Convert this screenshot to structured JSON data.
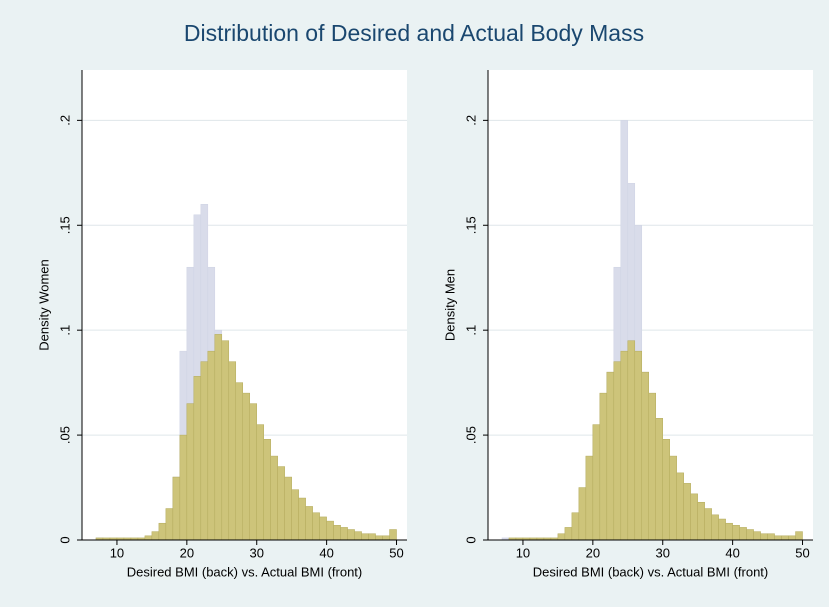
{
  "title": "Distribution of Desired and Actual Body Mass",
  "chart_data": [
    {
      "type": "histogram",
      "ylabel": "Density Women",
      "xlabel": "Desired BMI (back) vs. Actual BMI (front)",
      "bins": [
        7,
        8,
        9,
        10,
        11,
        12,
        13,
        14,
        15,
        16,
        17,
        18,
        19,
        20,
        21,
        22,
        23,
        24,
        25,
        26,
        27,
        28,
        29,
        30,
        31,
        32,
        33,
        34,
        35,
        36,
        37,
        38,
        39,
        40,
        41,
        42,
        43,
        44,
        45,
        46,
        47,
        48,
        49,
        50
      ],
      "series": [
        {
          "name": "Desired BMI",
          "color": "#d9dcea",
          "values": [
            0.001,
            0,
            0,
            0,
            0,
            0,
            0,
            0.001,
            0.001,
            0.003,
            0.008,
            0.03,
            0.09,
            0.13,
            0.155,
            0.16,
            0.13,
            0.1,
            0.07,
            0.05,
            0.03,
            0.02,
            0.012,
            0.008,
            0.005,
            0.003,
            0.002,
            0.001,
            0,
            0,
            0,
            0,
            0,
            0,
            0,
            0,
            0,
            0,
            0,
            0,
            0,
            0,
            0
          ]
        },
        {
          "name": "Actual BMI",
          "color": "#cdc47a",
          "values": [
            0.001,
            0.001,
            0.001,
            0.001,
            0.001,
            0.001,
            0.001,
            0.002,
            0.004,
            0.008,
            0.015,
            0.03,
            0.05,
            0.065,
            0.078,
            0.085,
            0.09,
            0.098,
            0.095,
            0.085,
            0.075,
            0.07,
            0.065,
            0.055,
            0.048,
            0.04,
            0.035,
            0.03,
            0.024,
            0.02,
            0.016,
            0.013,
            0.011,
            0.009,
            0.007,
            0.006,
            0.005,
            0.004,
            0.003,
            0.003,
            0.002,
            0.002,
            0.005
          ]
        }
      ],
      "xlim": [
        5,
        51.5
      ],
      "ylim": [
        0,
        0.224
      ],
      "xticks": [
        10,
        20,
        30,
        40,
        50
      ],
      "yticks": [
        0,
        {
          "value": 0.05,
          "label": ".05"
        },
        {
          "value": 0.1,
          "label": ".1"
        },
        {
          "value": 0.15,
          "label": ".15"
        },
        {
          "value": 0.2,
          "label": ".2"
        }
      ],
      "grid": true
    },
    {
      "type": "histogram",
      "ylabel": "Density Men",
      "xlabel": "Desired BMI (back) vs. Actual BMI (front)",
      "bins": [
        7,
        8,
        9,
        10,
        11,
        12,
        13,
        14,
        15,
        16,
        17,
        18,
        19,
        20,
        21,
        22,
        23,
        24,
        25,
        26,
        27,
        28,
        29,
        30,
        31,
        32,
        33,
        34,
        35,
        36,
        37,
        38,
        39,
        40,
        41,
        42,
        43,
        44,
        45,
        46,
        47,
        48,
        49,
        50
      ],
      "series": [
        {
          "name": "Desired BMI",
          "color": "#d9dcea",
          "values": [
            0.001,
            0,
            0,
            0,
            0,
            0,
            0,
            0,
            0,
            0.001,
            0.002,
            0.005,
            0.01,
            0.025,
            0.05,
            0.08,
            0.13,
            0.2,
            0.17,
            0.15,
            0.08,
            0.04,
            0.02,
            0.01,
            0.005,
            0.003,
            0.002,
            0.001,
            0,
            0,
            0,
            0,
            0,
            0,
            0,
            0,
            0,
            0,
            0,
            0,
            0,
            0,
            0
          ]
        },
        {
          "name": "Actual BMI",
          "color": "#cdc47a",
          "values": [
            0,
            0.001,
            0.001,
            0.001,
            0.001,
            0.001,
            0.001,
            0.001,
            0.003,
            0.006,
            0.013,
            0.025,
            0.04,
            0.055,
            0.07,
            0.08,
            0.085,
            0.09,
            0.095,
            0.09,
            0.08,
            0.07,
            0.058,
            0.048,
            0.04,
            0.032,
            0.027,
            0.022,
            0.018,
            0.015,
            0.012,
            0.01,
            0.008,
            0.007,
            0.006,
            0.005,
            0.004,
            0.003,
            0.003,
            0.002,
            0.002,
            0.002,
            0.004
          ]
        }
      ],
      "xlim": [
        5,
        51.5
      ],
      "ylim": [
        0,
        0.224
      ],
      "xticks": [
        10,
        20,
        30,
        40,
        50
      ],
      "yticks": [
        0,
        {
          "value": 0.05,
          "label": ".05"
        },
        {
          "value": 0.1,
          "label": ".1"
        },
        {
          "value": 0.15,
          "label": ".15"
        },
        {
          "value": 0.2,
          "label": ".2"
        }
      ],
      "grid": true
    }
  ]
}
